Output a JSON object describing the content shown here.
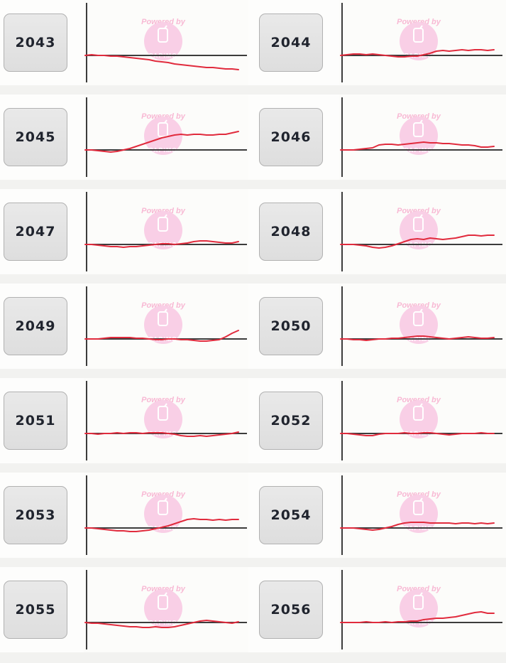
{
  "watermark": {
    "powered_by": "Powered by",
    "brand": "PAPiMO",
    "phone_icon": "papimo-phone-icon",
    "text_color": "#f8b9d4",
    "circle_color": "#f9cfe6",
    "logo_text_color": "#ffffff"
  },
  "colors": {
    "line": "#e12b3d",
    "axis": "#3c3c3c",
    "panel_bg": "#fcfcfa",
    "row_bg": "#fdfdfc",
    "page_bg": "#f2f2f0",
    "button_bg": "#e3e3e3",
    "button_border": "#b1b1b1",
    "button_text": "#20242e"
  },
  "chart_meta": {
    "description": "slump sparkline per machine number; values are vertical offsets (px) above (+) or below (-) the zero baseline axis; no tick labels shown",
    "baseline": 0,
    "grid": false,
    "legend": false
  },
  "chart_data": [
    {
      "type": "line",
      "year": "2043",
      "values": [
        0,
        1,
        0,
        0,
        -1,
        -1,
        -2,
        -3,
        -4,
        -5,
        -6,
        -8,
        -9,
        -10,
        -12,
        -13,
        -14,
        -15,
        -16,
        -17,
        -17,
        -18,
        -19,
        -19,
        -20
      ]
    },
    {
      "type": "line",
      "year": "2044",
      "values": [
        0,
        1,
        2,
        2,
        1,
        2,
        1,
        0,
        -1,
        -2,
        -2,
        -1,
        -1,
        1,
        3,
        6,
        7,
        6,
        7,
        8,
        7,
        8,
        8,
        7,
        8
      ]
    },
    {
      "type": "line",
      "year": "2045",
      "values": [
        0,
        0,
        -1,
        -2,
        -3,
        -2,
        0,
        2,
        5,
        8,
        11,
        14,
        17,
        19,
        21,
        22,
        21,
        22,
        22,
        21,
        21,
        22,
        22,
        24,
        26
      ]
    },
    {
      "type": "line",
      "year": "2046",
      "values": [
        0,
        0,
        0,
        1,
        2,
        3,
        7,
        8,
        8,
        7,
        8,
        9,
        10,
        11,
        10,
        10,
        9,
        9,
        8,
        7,
        7,
        6,
        4,
        4,
        5
      ]
    },
    {
      "type": "line",
      "year": "2047",
      "values": [
        0,
        0,
        -1,
        -2,
        -3,
        -3,
        -4,
        -3,
        -3,
        -2,
        -1,
        0,
        1,
        1,
        0,
        1,
        2,
        4,
        5,
        5,
        4,
        3,
        2,
        2,
        4
      ]
    },
    {
      "type": "line",
      "year": "2048",
      "values": [
        0,
        0,
        0,
        -1,
        -2,
        -4,
        -5,
        -4,
        -2,
        1,
        4,
        7,
        8,
        7,
        9,
        8,
        7,
        8,
        9,
        11,
        13,
        13,
        12,
        13,
        13
      ]
    },
    {
      "type": "line",
      "year": "2049",
      "values": [
        0,
        0,
        0,
        1,
        2,
        2,
        2,
        2,
        1,
        1,
        0,
        -1,
        -1,
        0,
        0,
        -1,
        -1,
        -2,
        -3,
        -3,
        -2,
        -1,
        3,
        8,
        12
      ]
    },
    {
      "type": "line",
      "year": "2050",
      "values": [
        0,
        0,
        -1,
        -1,
        -2,
        -1,
        0,
        0,
        1,
        1,
        2,
        3,
        4,
        4,
        3,
        2,
        1,
        0,
        1,
        2,
        3,
        2,
        1,
        1,
        2
      ]
    },
    {
      "type": "line",
      "year": "2051",
      "values": [
        0,
        0,
        -1,
        0,
        0,
        1,
        0,
        1,
        1,
        0,
        1,
        1,
        1,
        0,
        -1,
        -3,
        -4,
        -4,
        -3,
        -4,
        -3,
        -2,
        -1,
        0,
        2
      ]
    },
    {
      "type": "line",
      "year": "2052",
      "values": [
        0,
        0,
        -1,
        -2,
        -3,
        -3,
        -1,
        0,
        0,
        0,
        1,
        0,
        0,
        1,
        1,
        0,
        -1,
        -2,
        -1,
        0,
        0,
        0,
        1,
        0,
        0
      ]
    },
    {
      "type": "line",
      "year": "2053",
      "values": [
        0,
        0,
        -1,
        -2,
        -3,
        -4,
        -4,
        -5,
        -5,
        -4,
        -3,
        -1,
        1,
        3,
        6,
        9,
        12,
        13,
        12,
        12,
        11,
        12,
        11,
        12,
        12
      ]
    },
    {
      "type": "line",
      "year": "2054",
      "values": [
        0,
        0,
        0,
        -1,
        -2,
        -3,
        -2,
        0,
        2,
        5,
        7,
        8,
        8,
        8,
        7,
        7,
        7,
        7,
        6,
        7,
        7,
        6,
        7,
        6,
        7
      ]
    },
    {
      "type": "line",
      "year": "2055",
      "values": [
        0,
        -1,
        -1,
        -2,
        -3,
        -4,
        -5,
        -6,
        -6,
        -7,
        -7,
        -6,
        -7,
        -7,
        -6,
        -4,
        -2,
        0,
        2,
        3,
        2,
        1,
        0,
        -1,
        1
      ]
    },
    {
      "type": "line",
      "year": "2056",
      "values": [
        0,
        0,
        0,
        0,
        1,
        0,
        0,
        1,
        0,
        1,
        1,
        2,
        2,
        4,
        5,
        6,
        6,
        7,
        8,
        10,
        12,
        14,
        15,
        13,
        13
      ]
    }
  ]
}
